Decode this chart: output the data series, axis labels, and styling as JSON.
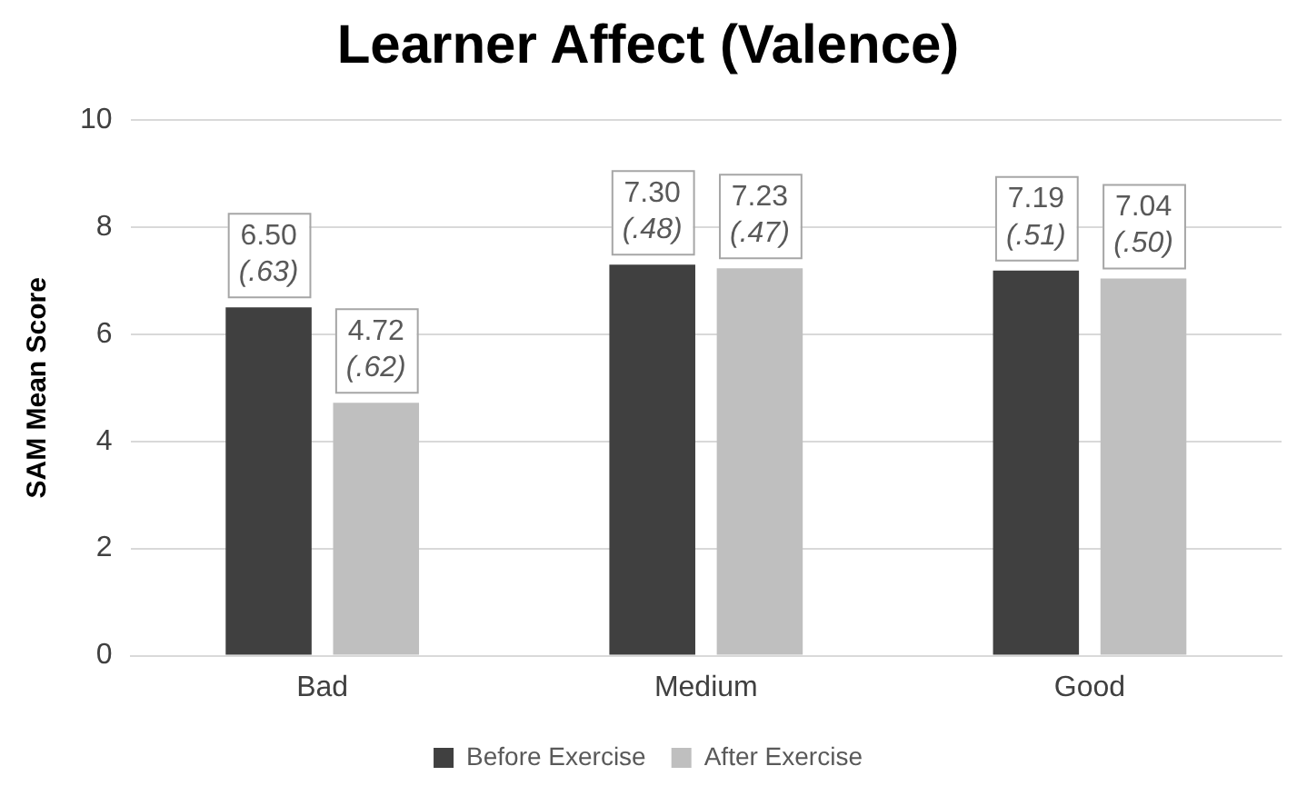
{
  "chart_data": {
    "type": "bar",
    "title": "Learner Affect (Valence)",
    "ylabel": "SAM Mean Score",
    "categories": [
      "Bad",
      "Medium",
      "Good"
    ],
    "series": [
      {
        "name": "Before Exercise",
        "color": "#404040",
        "values": [
          6.5,
          7.3,
          7.19
        ],
        "value_labels": [
          "6.50\n(.63)",
          "7.30\n(.48)",
          "7.19\n(.51)"
        ]
      },
      {
        "name": "After Exercise",
        "color": "#bfbfbf",
        "values": [
          4.72,
          7.23,
          7.04
        ],
        "value_labels": [
          "4.72\n(.62)",
          "7.23\n(.47)",
          "7.04\n(.50)"
        ]
      }
    ],
    "ylim": [
      0,
      10
    ],
    "yticks": [
      0,
      2,
      4,
      6,
      8,
      10
    ],
    "grid": "y",
    "legend": "bottom"
  }
}
